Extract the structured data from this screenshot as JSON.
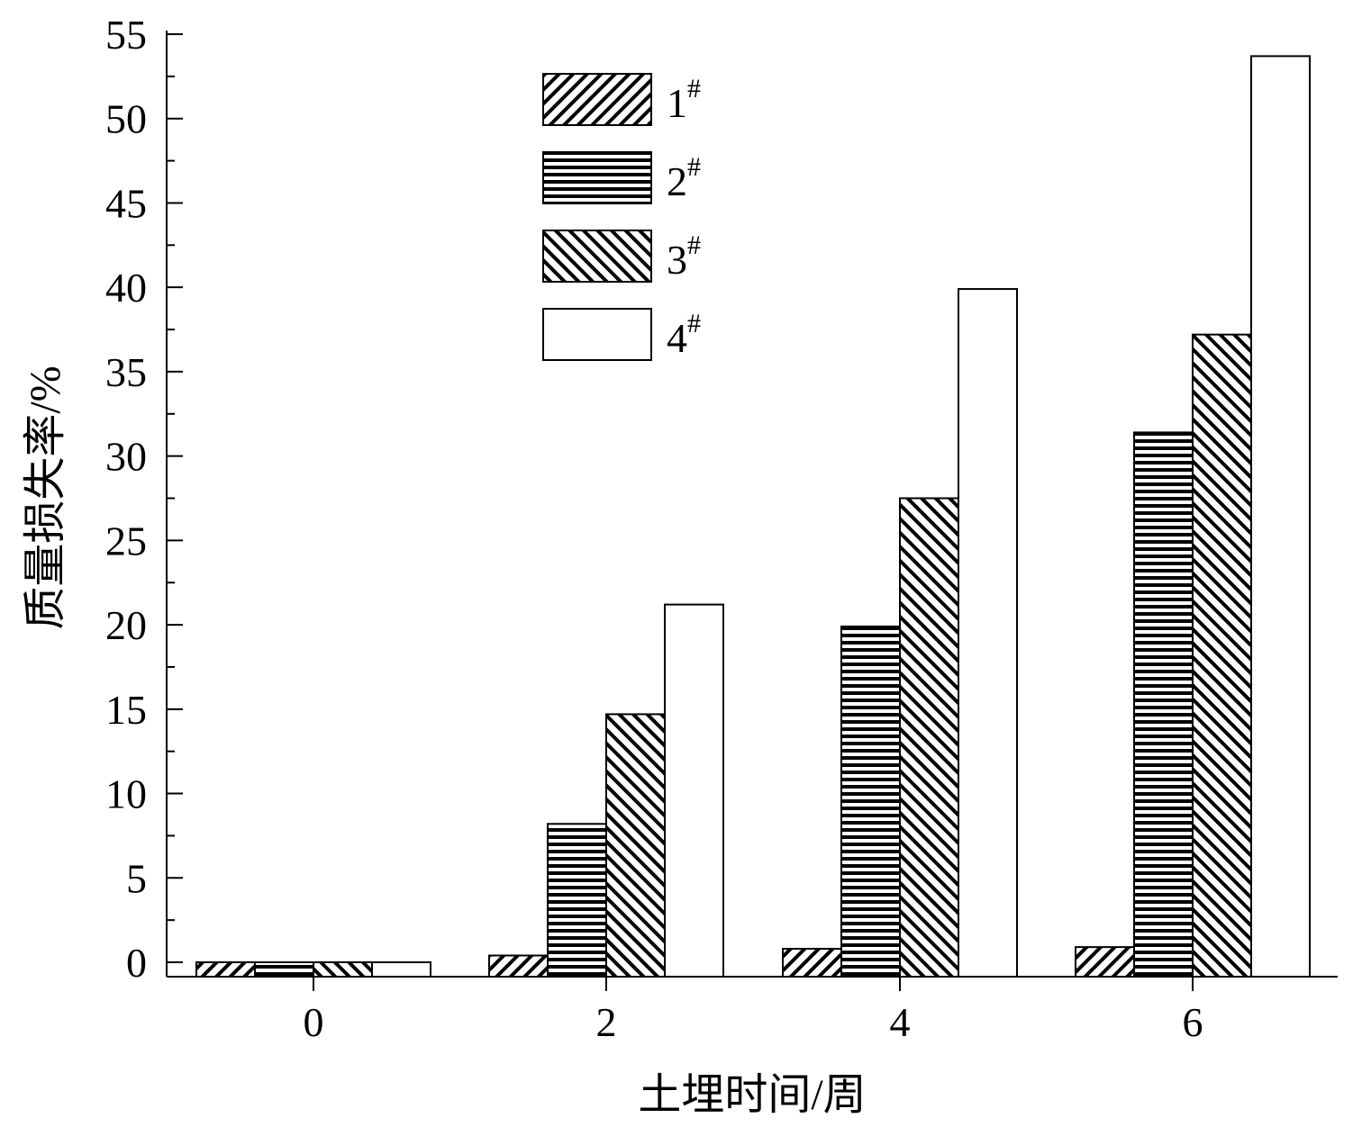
{
  "chart_data": {
    "type": "bar",
    "xlabel": "土埋时间/周",
    "ylabel": "质量损失率/%",
    "categories": [
      "0",
      "2",
      "4",
      "6"
    ],
    "series": [
      {
        "name": "1#",
        "base": "1",
        "sup": "#",
        "pattern": "diag-up",
        "values": [
          0.0,
          0.4,
          0.8,
          0.9
        ]
      },
      {
        "name": "2#",
        "base": "2",
        "sup": "#",
        "pattern": "horizontal",
        "values": [
          0.0,
          8.2,
          19.9,
          31.4
        ]
      },
      {
        "name": "3#",
        "base": "3",
        "sup": "#",
        "pattern": "diag-down",
        "values": [
          0.0,
          14.7,
          27.5,
          37.2
        ]
      },
      {
        "name": "4#",
        "base": "4",
        "sup": "#",
        "pattern": "none",
        "values": [
          0.0,
          21.2,
          39.9,
          53.7
        ]
      }
    ],
    "yticks": [
      0,
      5,
      10,
      15,
      20,
      25,
      30,
      35,
      40,
      45,
      50,
      55
    ],
    "ylim": [
      -0.9,
      55
    ],
    "legend_position": "top-center",
    "grid": false
  }
}
